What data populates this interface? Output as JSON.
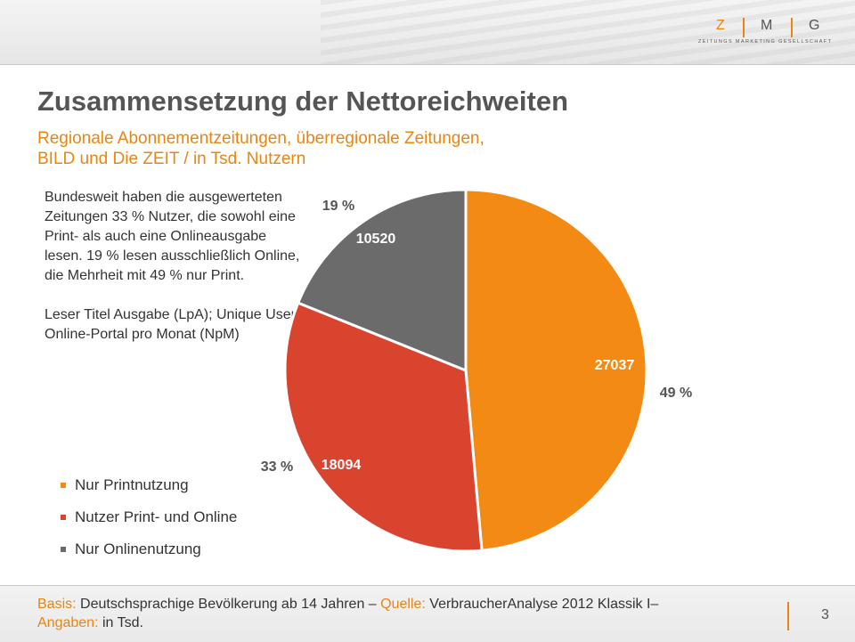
{
  "header": {
    "logo": {
      "letters": [
        "Z",
        "M",
        "G"
      ],
      "subline": "ZEITUNGS MARKETING GESELLSCHAFT"
    }
  },
  "title": "Zusammensetzung der Nettoreichweiten",
  "subtitle": {
    "line1": "Regionale Abonnementzeitungen, überregionale Zeitungen,",
    "line2": "BILD und Die ZEIT / in Tsd. Nutzern"
  },
  "description": {
    "para1": "Bundesweit haben die ausgewerteten Zeitungen 33 % Nutzer, die sowohl eine Print- als auch eine Onlineausgabe lesen. 19 % lesen ausschließlich Online, die Mehrheit mit 49 % nur Print.",
    "para2": "Leser Titel Ausgabe (LpA); Unique User Online-Portal pro Monat (NpM)"
  },
  "chart_data": {
    "type": "pie",
    "title": "",
    "unit": "Tsd. Nutzer",
    "slices": [
      {
        "name": "Nur Printnutzung",
        "value": 27037,
        "percent_label": "49 %",
        "color": "#f28a13"
      },
      {
        "name": "Nutzer Print- und Online",
        "value": 18094,
        "percent_label": "33 %",
        "color": "#d9442f"
      },
      {
        "name": "Nur Onlinenutzung",
        "value": 10520,
        "percent_label": "19 %",
        "color": "#6b6b6b"
      }
    ],
    "legend": [
      "Nur Printnutzung",
      "Nutzer Print- und Online",
      "Nur Onlinenutzung"
    ],
    "legend_position": "bottom-left"
  },
  "footer": {
    "basis_label": "Basis:",
    "basis_text": " Deutschsprachige Bevölkerung ab 14 Jahren – ",
    "quelle_label": "Quelle:",
    "quelle_text": " VerbraucherAnalyse 2012 Klassik I–",
    "angaben_label": "Angaben:",
    "angaben_text": " in Tsd.",
    "page_number": "3"
  }
}
